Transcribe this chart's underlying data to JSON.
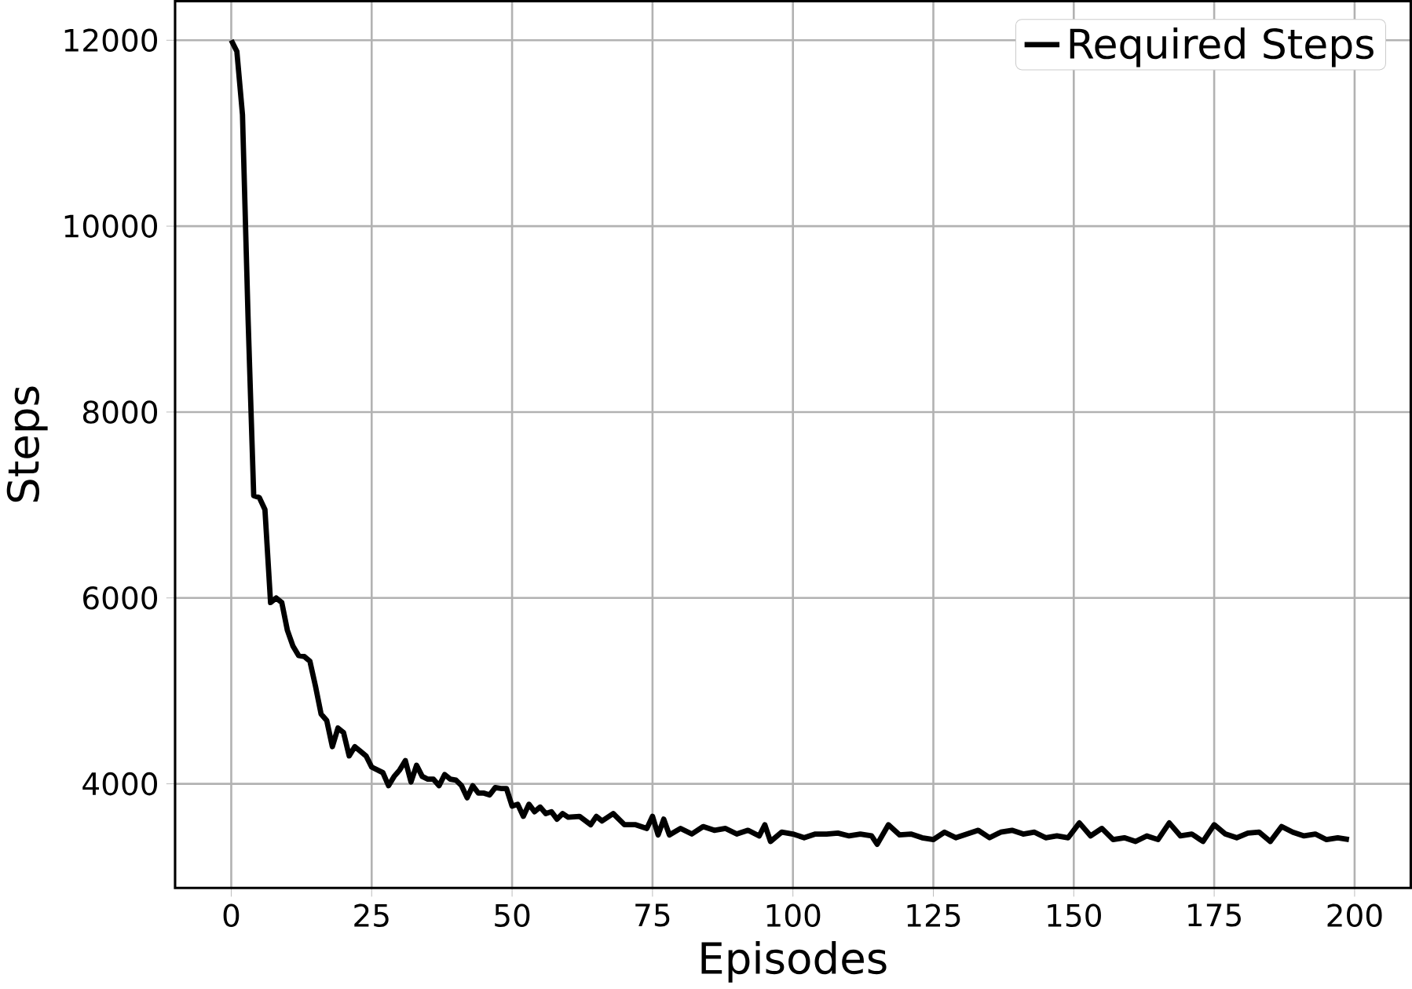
{
  "chart_data": {
    "type": "line",
    "xlabel": "Episodes",
    "ylabel": "Steps",
    "x": [
      0,
      1,
      2,
      3,
      4,
      5,
      6,
      7,
      8,
      9,
      10,
      11,
      12,
      13,
      14,
      15,
      16,
      17,
      18,
      19,
      20,
      21,
      22,
      23,
      24,
      25,
      26,
      27,
      28,
      29,
      30,
      31,
      32,
      33,
      34,
      35,
      36,
      37,
      38,
      39,
      40,
      41,
      42,
      43,
      44,
      45,
      46,
      47,
      48,
      49,
      50,
      51,
      52,
      53,
      54,
      55,
      56,
      57,
      58,
      59,
      60,
      62,
      64,
      65,
      66,
      68,
      70,
      72,
      74,
      75,
      76,
      77,
      78,
      80,
      82,
      84,
      86,
      88,
      90,
      92,
      94,
      95,
      96,
      98,
      100,
      102,
      104,
      106,
      108,
      110,
      112,
      114,
      115,
      117,
      119,
      121,
      123,
      125,
      127,
      129,
      131,
      133,
      135,
      137,
      139,
      141,
      143,
      145,
      147,
      149,
      151,
      153,
      155,
      157,
      159,
      161,
      163,
      165,
      167,
      169,
      171,
      173,
      175,
      177,
      179,
      181,
      183,
      185,
      187,
      189,
      191,
      193,
      195,
      197,
      199
    ],
    "series": [
      {
        "name": "Required Steps",
        "color": "#000000",
        "values": [
          12000,
          11880,
          11200,
          9000,
          7100,
          7080,
          6950,
          5950,
          6000,
          5950,
          5650,
          5480,
          5380,
          5370,
          5320,
          5050,
          4750,
          4680,
          4400,
          4600,
          4550,
          4300,
          4400,
          4350,
          4300,
          4180,
          4150,
          4120,
          3980,
          4080,
          4150,
          4250,
          4020,
          4200,
          4080,
          4050,
          4050,
          3980,
          4100,
          4050,
          4040,
          3980,
          3850,
          3980,
          3900,
          3900,
          3880,
          3960,
          3950,
          3950,
          3760,
          3780,
          3650,
          3780,
          3700,
          3750,
          3680,
          3700,
          3620,
          3680,
          3640,
          3650,
          3560,
          3650,
          3600,
          3680,
          3560,
          3560,
          3520,
          3650,
          3450,
          3620,
          3450,
          3520,
          3460,
          3540,
          3500,
          3520,
          3460,
          3500,
          3440,
          3560,
          3380,
          3480,
          3460,
          3420,
          3460,
          3460,
          3470,
          3440,
          3460,
          3440,
          3350,
          3560,
          3450,
          3460,
          3420,
          3400,
          3480,
          3420,
          3460,
          3500,
          3420,
          3480,
          3500,
          3460,
          3480,
          3420,
          3440,
          3420,
          3580,
          3440,
          3520,
          3400,
          3420,
          3380,
          3440,
          3400,
          3580,
          3440,
          3460,
          3380,
          3560,
          3460,
          3420,
          3470,
          3480,
          3380,
          3540,
          3480,
          3440,
          3460,
          3400,
          3420,
          3400
        ]
      }
    ],
    "xlim": [
      -10,
      210
    ],
    "ylim": [
      2880,
      12420
    ],
    "xticks": [
      0,
      25,
      50,
      75,
      100,
      125,
      150,
      175,
      200
    ],
    "yticks": [
      4000,
      6000,
      8000,
      10000,
      12000
    ],
    "grid": true,
    "legend": "top right",
    "marker": "none",
    "line_style": "solid"
  }
}
